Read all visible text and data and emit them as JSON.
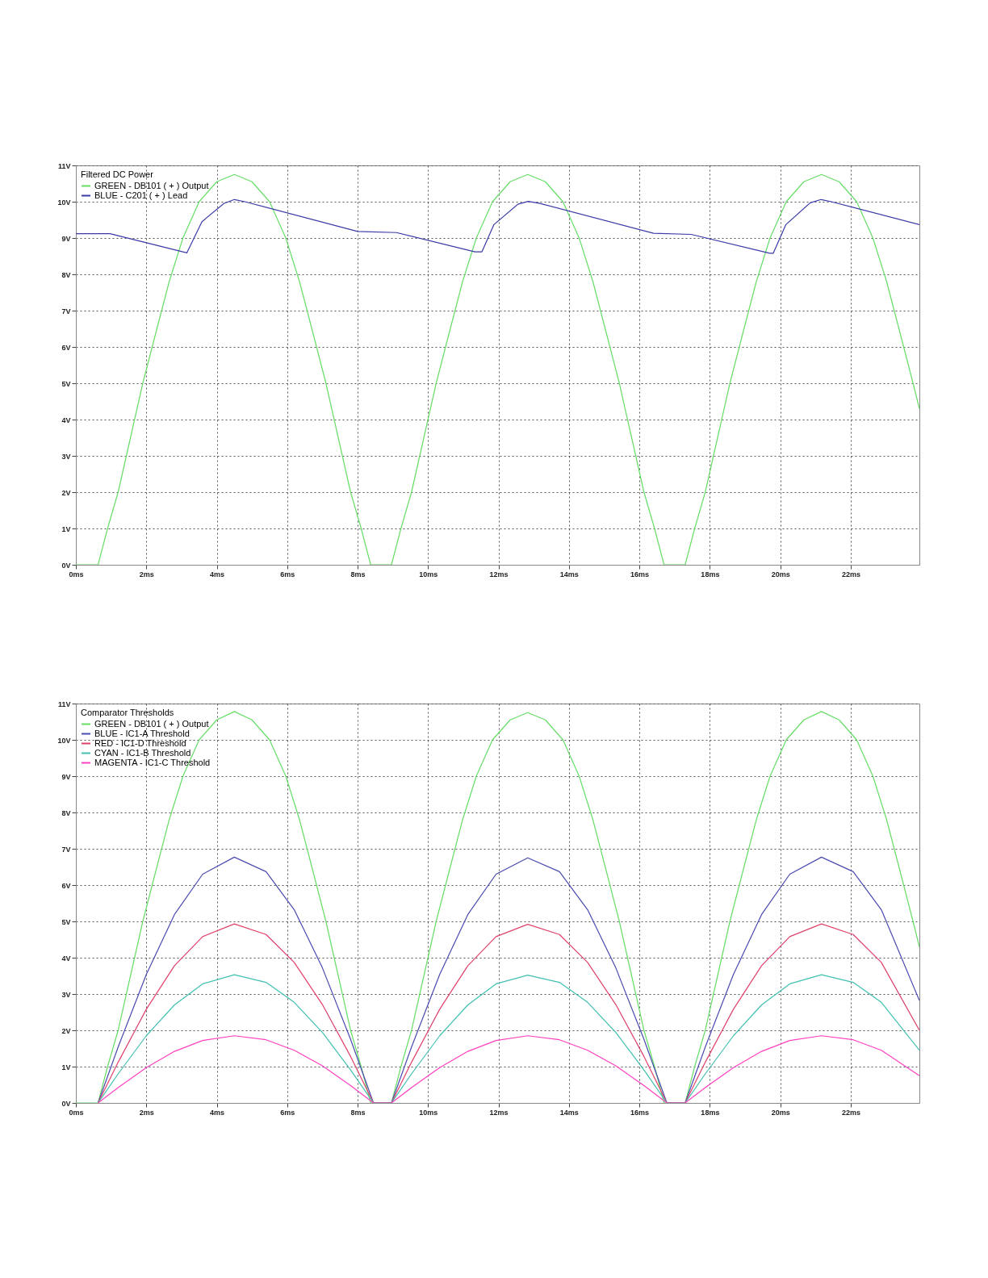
{
  "chart_data": [
    {
      "type": "line",
      "title": "Filtered DC Power",
      "legend": "top left",
      "grid": true,
      "line_style": "solid",
      "marker": "none",
      "xlim": [
        0,
        23.95
      ],
      "ylim": [
        0,
        11
      ],
      "xticks": [
        {
          "value": 0,
          "label": "0ms"
        },
        {
          "value": 2,
          "label": "2ms"
        },
        {
          "value": 4,
          "label": "4ms"
        },
        {
          "value": 6,
          "label": "6ms"
        },
        {
          "value": 8,
          "label": "8ms"
        },
        {
          "value": 10,
          "label": "10ms"
        },
        {
          "value": 12,
          "label": "12ms"
        },
        {
          "value": 14,
          "label": "14ms"
        },
        {
          "value": 16,
          "label": "16ms"
        },
        {
          "value": 18,
          "label": "18ms"
        },
        {
          "value": 20,
          "label": "20ms"
        },
        {
          "value": 22,
          "label": "22ms"
        }
      ],
      "yticks": [
        {
          "value": 0,
          "label": "0V"
        },
        {
          "value": 1,
          "label": "1V"
        },
        {
          "value": 2,
          "label": "2V"
        },
        {
          "value": 3,
          "label": "3V"
        },
        {
          "value": 4,
          "label": "4V"
        },
        {
          "value": 5,
          "label": "5V"
        },
        {
          "value": 6,
          "label": "6V"
        },
        {
          "value": 7,
          "label": "7V"
        },
        {
          "value": 8,
          "label": "8V"
        },
        {
          "value": 9,
          "label": "9V"
        },
        {
          "value": 10,
          "label": "10V"
        },
        {
          "value": 11,
          "label": "11V"
        }
      ],
      "series": [
        {
          "name": "GREEN - DB101 ( + ) Output",
          "color": "#66dd66",
          "x": [
            0,
            0.63,
            0.9,
            1.2,
            1.55,
            1.9,
            2.3,
            2.65,
            3.04,
            3.5,
            4.0,
            4.5,
            5.0,
            5.5,
            5.96,
            6.35,
            6.7,
            7.1,
            7.45,
            7.8,
            8.1,
            8.37,
            8.96,
            9.23,
            9.53,
            9.88,
            10.23,
            10.63,
            10.98,
            11.37,
            11.83,
            12.33,
            12.83,
            13.33,
            13.83,
            14.29,
            14.68,
            15.03,
            15.43,
            15.78,
            16.13,
            16.43,
            16.7,
            17.3,
            17.57,
            17.87,
            18.22,
            18.57,
            18.97,
            19.32,
            19.71,
            20.17,
            20.67,
            21.17,
            21.67,
            22.17,
            22.63,
            23.02,
            23.37,
            23.77,
            23.95
          ],
          "values": [
            0,
            0,
            1,
            2,
            3.5,
            5,
            6.5,
            7.8,
            9,
            10,
            10.55,
            10.75,
            10.55,
            10,
            9,
            7.8,
            6.5,
            5,
            3.5,
            2,
            1,
            0,
            0,
            1,
            2,
            3.5,
            5,
            6.5,
            7.8,
            9,
            10,
            10.55,
            10.75,
            10.55,
            10,
            9,
            7.8,
            6.5,
            5,
            3.5,
            2,
            1,
            0,
            0,
            1,
            2,
            3.5,
            5,
            6.5,
            7.8,
            9,
            10,
            10.55,
            10.75,
            10.55,
            10,
            9,
            7.8,
            6.5,
            5,
            4.3
          ]
        },
        {
          "name": "BLUE - C201 ( + ) Lead",
          "color": "#3a3aa8",
          "x": [
            0,
            0.97,
            3.15,
            3.58,
            4.2,
            4.5,
            4.8,
            8.0,
            9.1,
            11.33,
            11.53,
            11.87,
            12.55,
            12.84,
            13.15,
            16.4,
            17.47,
            19.7,
            19.8,
            20.16,
            20.85,
            21.16,
            21.45,
            23.95
          ],
          "values": [
            9.12,
            9.12,
            8.59,
            9.45,
            9.95,
            10.06,
            10.0,
            9.18,
            9.15,
            8.62,
            8.62,
            9.37,
            9.93,
            10.01,
            9.96,
            9.13,
            9.1,
            8.58,
            8.58,
            9.37,
            9.97,
            10.06,
            10.0,
            9.37
          ]
        }
      ]
    },
    {
      "type": "line",
      "title": "Comparator Thresholds",
      "legend": "top left",
      "grid": true,
      "line_style": "solid",
      "marker": "none",
      "xlim": [
        0,
        23.95
      ],
      "ylim": [
        0,
        11
      ],
      "xticks": [
        {
          "value": 0,
          "label": "0ms"
        },
        {
          "value": 2,
          "label": "2ms"
        },
        {
          "value": 4,
          "label": "4ms"
        },
        {
          "value": 6,
          "label": "6ms"
        },
        {
          "value": 8,
          "label": "8ms"
        },
        {
          "value": 10,
          "label": "10ms"
        },
        {
          "value": 12,
          "label": "12ms"
        },
        {
          "value": 14,
          "label": "14ms"
        },
        {
          "value": 16,
          "label": "16ms"
        },
        {
          "value": 18,
          "label": "18ms"
        },
        {
          "value": 20,
          "label": "20ms"
        },
        {
          "value": 22,
          "label": "22ms"
        }
      ],
      "yticks": [
        {
          "value": 0,
          "label": "0V"
        },
        {
          "value": 1,
          "label": "1V"
        },
        {
          "value": 2,
          "label": "2V"
        },
        {
          "value": 3,
          "label": "3V"
        },
        {
          "value": 4,
          "label": "4V"
        },
        {
          "value": 5,
          "label": "5V"
        },
        {
          "value": 6,
          "label": "6V"
        },
        {
          "value": 7,
          "label": "7V"
        },
        {
          "value": 8,
          "label": "8V"
        },
        {
          "value": 9,
          "label": "9V"
        },
        {
          "value": 10,
          "label": "10V"
        },
        {
          "value": 11,
          "label": "11V"
        }
      ],
      "series": [
        {
          "name": "GREEN - DB101 ( + ) Output",
          "color": "#66dd66",
          "x": [
            0,
            0.63,
            0.9,
            1.2,
            1.55,
            1.9,
            2.3,
            2.65,
            3.04,
            3.5,
            4.0,
            4.5,
            5.0,
            5.5,
            5.96,
            6.35,
            6.7,
            7.1,
            7.45,
            7.8,
            8.1,
            8.37,
            8.96,
            9.23,
            9.53,
            9.88,
            10.23,
            10.63,
            10.98,
            11.37,
            11.83,
            12.33,
            12.83,
            13.33,
            13.83,
            14.29,
            14.68,
            15.03,
            15.43,
            15.78,
            16.13,
            16.43,
            16.7,
            17.3,
            17.57,
            17.87,
            18.22,
            18.57,
            18.97,
            19.32,
            19.71,
            20.17,
            20.67,
            21.17,
            21.67,
            22.17,
            22.63,
            23.02,
            23.37,
            23.77,
            23.95
          ],
          "values": [
            0,
            0,
            1,
            2,
            3.5,
            5,
            6.5,
            7.8,
            9,
            10,
            10.55,
            10.78,
            10.55,
            10,
            9,
            7.8,
            6.5,
            5,
            3.5,
            2,
            1,
            0,
            0,
            1,
            2,
            3.5,
            5,
            6.5,
            7.8,
            9,
            10,
            10.55,
            10.75,
            10.55,
            10,
            9,
            7.8,
            6.5,
            5,
            3.5,
            2,
            1,
            0,
            0,
            1,
            2,
            3.5,
            5,
            6.5,
            7.8,
            9,
            10,
            10.55,
            10.78,
            10.55,
            10,
            9,
            7.8,
            6.5,
            5,
            4.3
          ]
        },
        {
          "name": "BLUE - IC1-A Threshold",
          "color": "#4a4ab0",
          "x": [
            0.63,
            1.2,
            2,
            2.8,
            3.6,
            4.5,
            5.4,
            6.2,
            7.0,
            7.8,
            8.45,
            8.96,
            9.53,
            10.33,
            11.13,
            11.93,
            12.83,
            13.73,
            14.53,
            15.33,
            16.13,
            16.78,
            17.3,
            17.87,
            18.67,
            19.47,
            20.27,
            21.17,
            22.07,
            22.87,
            23.95
          ],
          "values": [
            0,
            1.54,
            3.54,
            5.19,
            6.3,
            6.77,
            6.37,
            5.32,
            3.72,
            1.75,
            0,
            0,
            1.54,
            3.54,
            5.19,
            6.3,
            6.75,
            6.37,
            5.32,
            3.72,
            1.75,
            0,
            0,
            1.54,
            3.54,
            5.19,
            6.3,
            6.77,
            6.37,
            5.32,
            2.82
          ]
        },
        {
          "name": "RED - IC1-D Threshold",
          "color": "#e0406a",
          "x": [
            0.63,
            1.2,
            2,
            2.8,
            3.6,
            4.5,
            5.4,
            6.2,
            7.0,
            7.8,
            8.45,
            8.96,
            9.53,
            10.33,
            11.13,
            11.93,
            12.83,
            13.73,
            14.53,
            15.33,
            16.13,
            16.78,
            17.3,
            17.87,
            18.67,
            19.47,
            20.27,
            21.17,
            22.07,
            22.87,
            23.95
          ],
          "values": [
            0,
            1.12,
            2.58,
            3.78,
            4.58,
            4.93,
            4.64,
            3.87,
            2.71,
            1.28,
            0,
            0,
            1.12,
            2.58,
            3.78,
            4.58,
            4.92,
            4.64,
            3.87,
            2.71,
            1.28,
            0,
            0,
            1.12,
            2.58,
            3.78,
            4.58,
            4.93,
            4.64,
            3.87,
            2.0
          ]
        },
        {
          "name": "CYAN - IC1-B Threshold",
          "color": "#40c0b0",
          "x": [
            0.63,
            1.2,
            2,
            2.8,
            3.6,
            4.5,
            5.4,
            6.2,
            7.0,
            7.8,
            8.45,
            8.96,
            9.53,
            10.33,
            11.13,
            11.93,
            12.83,
            13.73,
            14.53,
            15.33,
            16.13,
            16.78,
            17.3,
            17.87,
            18.67,
            19.47,
            20.27,
            21.17,
            22.07,
            22.87,
            23.95
          ],
          "values": [
            0,
            0.8,
            1.85,
            2.7,
            3.28,
            3.53,
            3.32,
            2.77,
            1.94,
            0.91,
            0,
            0,
            0.8,
            1.85,
            2.7,
            3.28,
            3.52,
            3.32,
            2.77,
            1.94,
            0.91,
            0,
            0,
            0.8,
            1.85,
            2.7,
            3.28,
            3.53,
            3.32,
            2.77,
            1.45
          ]
        },
        {
          "name": "MAGENTA - IC1-C Threshold",
          "color": "#ff40c0",
          "x": [
            0.63,
            1.2,
            2,
            2.8,
            3.6,
            4.5,
            5.4,
            6.2,
            7.0,
            7.8,
            8.45,
            8.96,
            9.53,
            10.33,
            11.13,
            11.93,
            12.83,
            13.73,
            14.53,
            15.33,
            16.13,
            16.78,
            17.3,
            17.87,
            18.67,
            19.47,
            20.27,
            21.17,
            22.07,
            22.87,
            23.95
          ],
          "values": [
            0,
            0.42,
            0.97,
            1.42,
            1.72,
            1.85,
            1.74,
            1.45,
            1.02,
            0.48,
            0,
            0,
            0.42,
            0.97,
            1.42,
            1.72,
            1.85,
            1.74,
            1.45,
            1.02,
            0.48,
            0,
            0,
            0.42,
            0.97,
            1.42,
            1.72,
            1.85,
            1.74,
            1.45,
            0.75
          ]
        }
      ]
    }
  ]
}
